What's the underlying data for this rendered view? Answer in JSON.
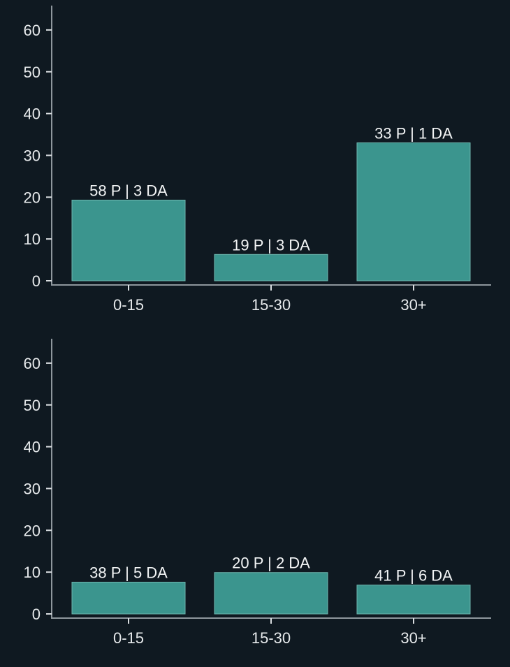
{
  "colors": {
    "background": "#0f1921",
    "bar": "#3b958e",
    "axis": "#8e979d",
    "text": "#e6e9eb"
  },
  "chart_data": [
    {
      "type": "bar",
      "categories": [
        "0-15",
        "15-30",
        "30+"
      ],
      "values": [
        19.3,
        6.3,
        33
      ],
      "data_labels": [
        "58 P | 3 DA",
        "19 P | 3 DA",
        "33 P | 1 DA"
      ],
      "title": "",
      "xlabel": "",
      "ylabel": "",
      "ylim": [
        0,
        66
      ],
      "yticks": [
        0,
        10,
        20,
        30,
        40,
        50,
        60
      ],
      "grid": false
    },
    {
      "type": "bar",
      "categories": [
        "0-15",
        "15-30",
        "30+"
      ],
      "values": [
        7.6,
        9.9,
        6.9
      ],
      "data_labels": [
        "38 P | 5 DA",
        "20 P | 2 DA",
        "41 P | 6 DA"
      ],
      "title": "",
      "xlabel": "",
      "ylabel": "",
      "ylim": [
        0,
        66
      ],
      "yticks": [
        0,
        10,
        20,
        30,
        40,
        50,
        60
      ],
      "grid": false
    }
  ]
}
